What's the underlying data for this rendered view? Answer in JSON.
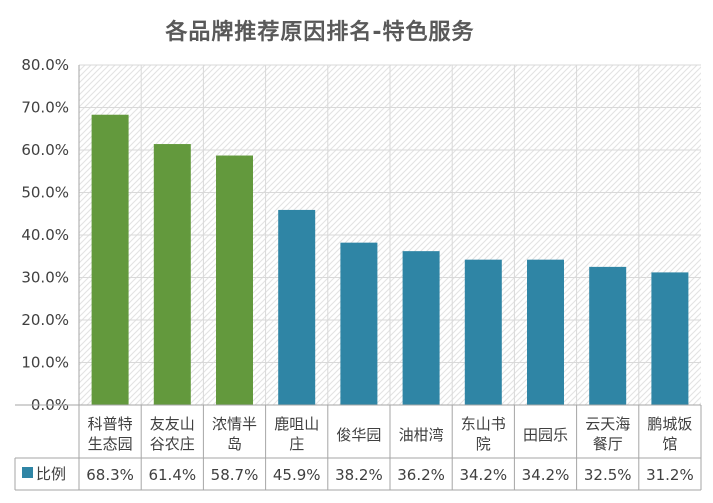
{
  "chart_data": {
    "type": "bar",
    "title": "各品牌推荐原因排名-特色服务",
    "categories": [
      [
        "科普特",
        "生态园"
      ],
      [
        "友友山",
        "谷农庄"
      ],
      [
        "浓情半",
        "岛"
      ],
      [
        "鹿咀山",
        "庄"
      ],
      [
        "俊华园"
      ],
      [
        "油柑湾"
      ],
      [
        "东山书",
        "院"
      ],
      [
        "田园乐"
      ],
      [
        "云天海",
        "餐厅"
      ],
      [
        "鹏城饭",
        "馆"
      ]
    ],
    "series": [
      {
        "name": "比例",
        "values": [
          68.3,
          61.4,
          58.7,
          45.9,
          38.2,
          36.2,
          34.2,
          34.2,
          32.5,
          31.2
        ],
        "labels": [
          "68.3%",
          "61.4%",
          "58.7%",
          "45.9%",
          "38.2%",
          "36.2%",
          "34.2%",
          "34.2%",
          "32.5%",
          "31.2%"
        ]
      }
    ],
    "highlight_count": 3,
    "ylim": [
      0,
      80
    ],
    "yticks": [
      "0.0%",
      "10.0%",
      "20.0%",
      "30.0%",
      "40.0%",
      "50.0%",
      "60.0%",
      "70.0%",
      "80.0%"
    ],
    "grid": true,
    "legend": "data-table",
    "colors": {
      "highlight": "#63993D",
      "default": "#2F85A5",
      "grid": "#D9D9D9",
      "axis": "#A6A6A6"
    }
  }
}
